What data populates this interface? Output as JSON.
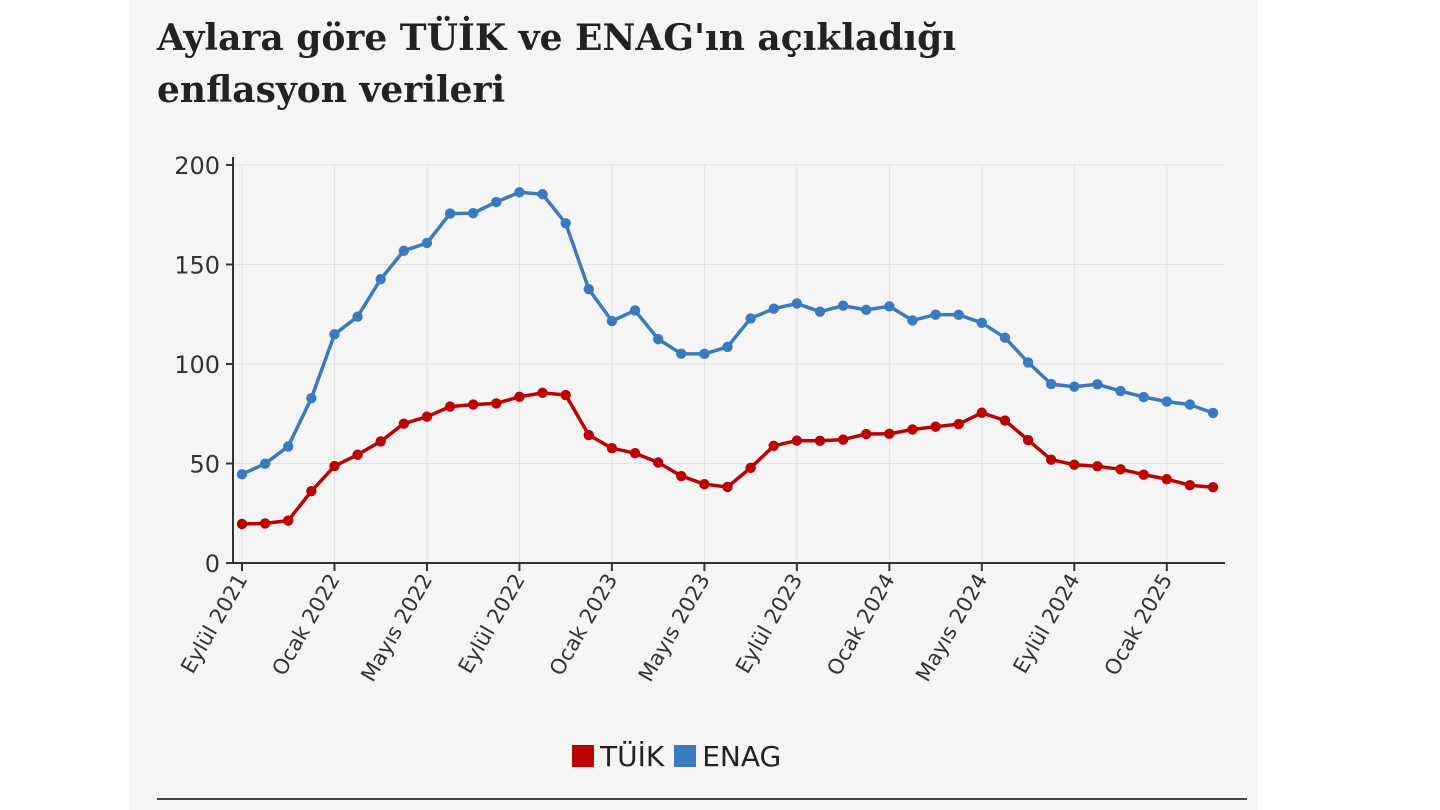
{
  "title_lines": [
    "Aylara göre TÜİK ve ENAG'ın açıkladığı",
    "enflasyon verileri"
  ],
  "chart_data": {
    "type": "line",
    "title": "Aylara göre TÜİK ve ENAG'ın açıkladığı enflasyon verileri",
    "xlabel": "",
    "ylabel": "",
    "ylim": [
      0,
      200
    ],
    "yticks": [
      0,
      50,
      100,
      150,
      200
    ],
    "grid": true,
    "legend_position": "bottom",
    "x_tick_labels": [
      "Eylül 2021",
      "Ocak 2022",
      "Mayıs 2022",
      "Eylül 2022",
      "Ocak 2023",
      "Mayıs 2023",
      "Eylül 2023",
      "Ocak 2024",
      "Mayıs 2024",
      "Eylül 2024",
      "Ocak 2025"
    ],
    "x_tick_index": [
      0,
      4,
      8,
      12,
      16,
      20,
      24,
      28,
      32,
      36,
      40
    ],
    "series": [
      {
        "name": "TÜİK",
        "color": "#bb0000",
        "values": [
          19.6,
          19.9,
          21.3,
          36.1,
          48.7,
          54.4,
          61.1,
          70.0,
          73.5,
          78.6,
          79.6,
          80.2,
          83.5,
          85.5,
          84.4,
          64.3,
          57.7,
          55.2,
          50.5,
          43.7,
          39.6,
          38.2,
          47.8,
          58.9,
          61.5,
          61.4,
          62.0,
          64.8,
          64.9,
          67.1,
          68.5,
          69.8,
          75.5,
          71.6,
          61.8,
          51.9,
          49.4,
          48.6,
          47.1,
          44.4,
          42.1,
          39.1,
          38.1
        ]
      },
      {
        "name": "ENAG",
        "color": "#3a7bbf",
        "values": [
          44.6,
          49.9,
          58.6,
          82.8,
          114.9,
          123.8,
          142.6,
          156.9,
          160.8,
          175.6,
          175.8,
          181.4,
          186.3,
          185.3,
          170.7,
          137.6,
          121.6,
          126.9,
          112.5,
          105.2,
          105.1,
          108.6,
          122.9,
          127.8,
          130.4,
          126.3,
          129.3,
          127.2,
          129.0,
          121.9,
          124.8,
          124.7,
          120.7,
          113.2,
          100.8,
          89.9,
          88.6,
          89.8,
          86.4,
          83.4,
          81.1,
          79.6,
          75.4
        ]
      }
    ]
  },
  "legend": [
    {
      "label": "TÜİK",
      "color": "#bb0000"
    },
    {
      "label": "ENAG",
      "color": "#3a7bbf"
    }
  ]
}
